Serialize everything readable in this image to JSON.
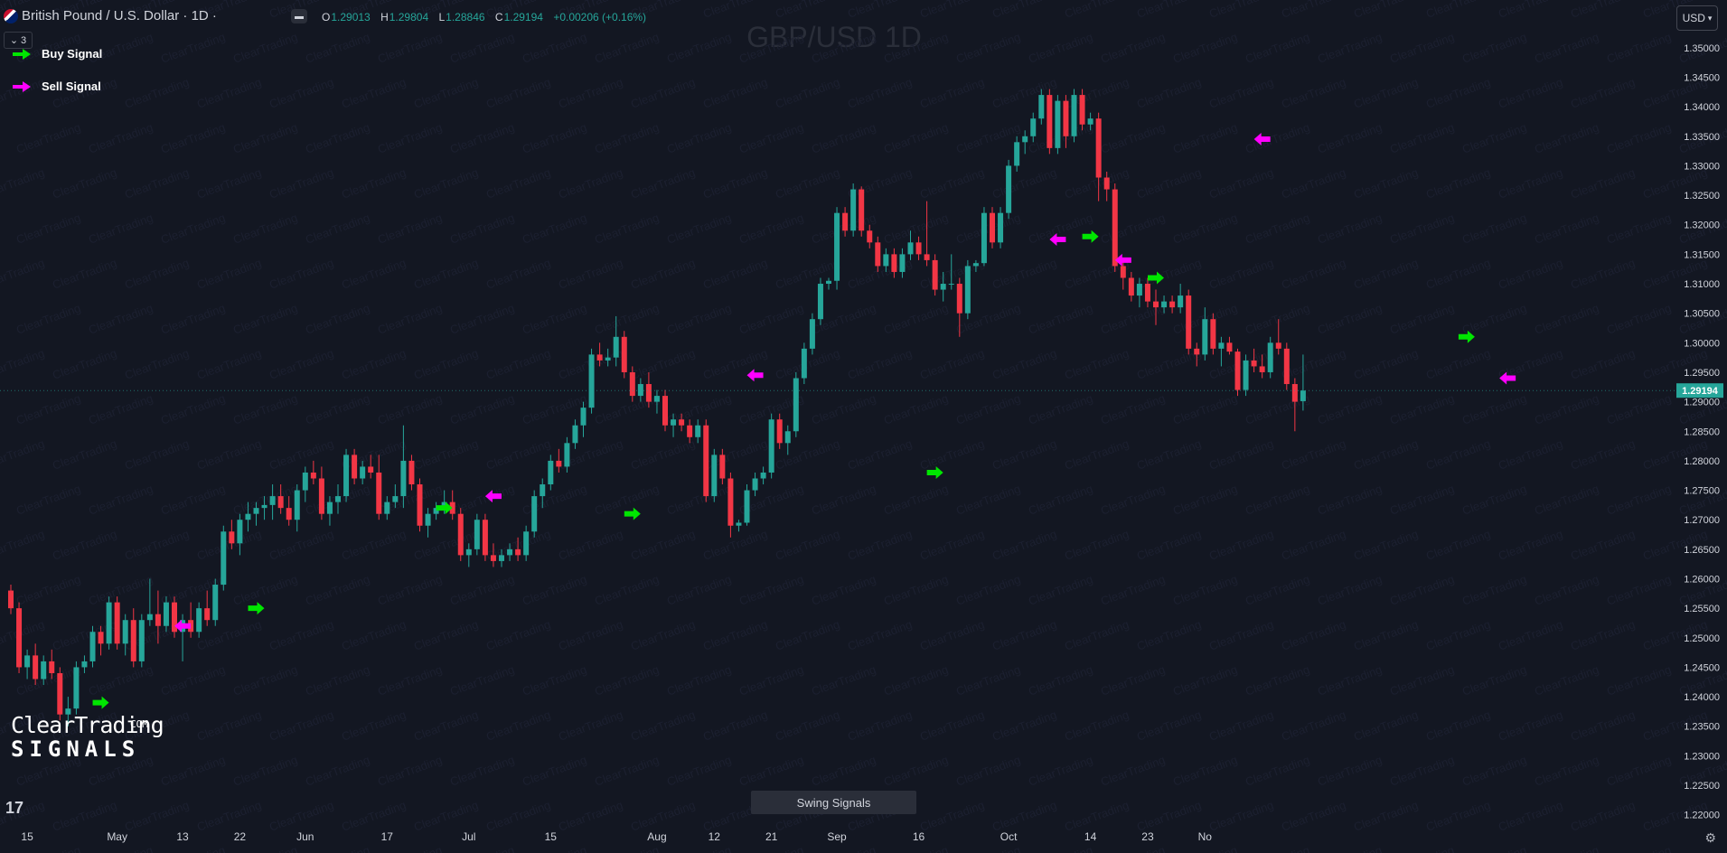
{
  "header": {
    "symbol": "British Pound / U.S. Dollar · 1D ·",
    "ohlc": [
      {
        "k": "O",
        "v": "1.29013"
      },
      {
        "k": "H",
        "v": "1.29804"
      },
      {
        "k": "L",
        "v": "1.28846"
      },
      {
        "k": "C",
        "v": "1.29194"
      }
    ],
    "change": "+0.00206 (+0.16%)",
    "indicator_count": "3",
    "currency": "USD"
  },
  "chart_data": {
    "type": "candlestick",
    "title": "GBP/USD 1D",
    "ylim": [
      1.2175,
      1.3535
    ],
    "yticks": [
      1.22,
      1.225,
      1.23,
      1.235,
      1.24,
      1.245,
      1.25,
      1.255,
      1.26,
      1.265,
      1.27,
      1.275,
      1.28,
      1.285,
      1.29,
      1.295,
      1.3,
      1.305,
      1.31,
      1.315,
      1.32,
      1.325,
      1.33,
      1.335,
      1.34,
      1.345,
      1.35
    ],
    "xticks": [
      {
        "label": "15",
        "i": 2
      },
      {
        "label": "May",
        "i": 13
      },
      {
        "label": "13",
        "i": 21
      },
      {
        "label": "22",
        "i": 28
      },
      {
        "label": "Jun",
        "i": 36
      },
      {
        "label": "17",
        "i": 46
      },
      {
        "label": "Jul",
        "i": 56
      },
      {
        "label": "15",
        "i": 66
      },
      {
        "label": "Aug",
        "i": 79
      },
      {
        "label": "12",
        "i": 86
      },
      {
        "label": "21",
        "i": 93
      },
      {
        "label": "Sep",
        "i": 101
      },
      {
        "label": "16",
        "i": 111
      },
      {
        "label": "Oct",
        "i": 122
      },
      {
        "label": "14",
        "i": 132
      },
      {
        "label": "23",
        "i": 139
      },
      {
        "label": "No",
        "i": 146
      }
    ],
    "last_price": "1.29194",
    "ohlc": [
      [
        1.258,
        1.259,
        1.254,
        1.255
      ],
      [
        1.255,
        1.256,
        1.244,
        1.245
      ],
      [
        1.245,
        1.248,
        1.243,
        1.247
      ],
      [
        1.247,
        1.249,
        1.242,
        1.243
      ],
      [
        1.243,
        1.247,
        1.242,
        1.246
      ],
      [
        1.246,
        1.248,
        1.243,
        1.244
      ],
      [
        1.244,
        1.245,
        1.236,
        1.237
      ],
      [
        1.237,
        1.24,
        1.235,
        1.238
      ],
      [
        1.238,
        1.246,
        1.237,
        1.245
      ],
      [
        1.245,
        1.247,
        1.244,
        1.246
      ],
      [
        1.246,
        1.252,
        1.245,
        1.251
      ],
      [
        1.251,
        1.252,
        1.247,
        1.249
      ],
      [
        1.249,
        1.257,
        1.248,
        1.256
      ],
      [
        1.256,
        1.257,
        1.248,
        1.249
      ],
      [
        1.249,
        1.254,
        1.247,
        1.253
      ],
      [
        1.253,
        1.255,
        1.245,
        1.246
      ],
      [
        1.246,
        1.254,
        1.245,
        1.253
      ],
      [
        1.253,
        1.26,
        1.252,
        1.254
      ],
      [
        1.254,
        1.258,
        1.249,
        1.252
      ],
      [
        1.252,
        1.257,
        1.251,
        1.256
      ],
      [
        1.256,
        1.257,
        1.25,
        1.251
      ],
      [
        1.251,
        1.254,
        1.246,
        1.253
      ],
      [
        1.253,
        1.256,
        1.25,
        1.251
      ],
      [
        1.251,
        1.256,
        1.25,
        1.255
      ],
      [
        1.255,
        1.258,
        1.252,
        1.253
      ],
      [
        1.253,
        1.26,
        1.252,
        1.259
      ],
      [
        1.259,
        1.269,
        1.258,
        1.268
      ],
      [
        1.268,
        1.27,
        1.265,
        1.266
      ],
      [
        1.266,
        1.271,
        1.264,
        1.27
      ],
      [
        1.27,
        1.273,
        1.268,
        1.271
      ],
      [
        1.271,
        1.273,
        1.269,
        1.272
      ],
      [
        1.272,
        1.274,
        1.27,
        1.2725
      ],
      [
        1.2725,
        1.276,
        1.27,
        1.274
      ],
      [
        1.274,
        1.276,
        1.271,
        1.272
      ],
      [
        1.272,
        1.274,
        1.269,
        1.27
      ],
      [
        1.27,
        1.276,
        1.268,
        1.275
      ],
      [
        1.275,
        1.279,
        1.273,
        1.278
      ],
      [
        1.278,
        1.28,
        1.276,
        1.277
      ],
      [
        1.277,
        1.279,
        1.27,
        1.271
      ],
      [
        1.271,
        1.274,
        1.269,
        1.273
      ],
      [
        1.273,
        1.276,
        1.271,
        1.274
      ],
      [
        1.274,
        1.282,
        1.273,
        1.281
      ],
      [
        1.281,
        1.282,
        1.276,
        1.277
      ],
      [
        1.277,
        1.28,
        1.276,
        1.279
      ],
      [
        1.279,
        1.281,
        1.277,
        1.278
      ],
      [
        1.278,
        1.281,
        1.27,
        1.271
      ],
      [
        1.271,
        1.274,
        1.27,
        1.273
      ],
      [
        1.273,
        1.276,
        1.272,
        1.274
      ],
      [
        1.274,
        1.286,
        1.272,
        1.28
      ],
      [
        1.28,
        1.281,
        1.275,
        1.276
      ],
      [
        1.276,
        1.277,
        1.268,
        1.269
      ],
      [
        1.269,
        1.272,
        1.267,
        1.271
      ],
      [
        1.271,
        1.273,
        1.27,
        1.272
      ],
      [
        1.272,
        1.275,
        1.271,
        1.273
      ],
      [
        1.273,
        1.275,
        1.27,
        1.271
      ],
      [
        1.271,
        1.272,
        1.263,
        1.264
      ],
      [
        1.264,
        1.266,
        1.262,
        1.265
      ],
      [
        1.265,
        1.271,
        1.264,
        1.27
      ],
      [
        1.27,
        1.271,
        1.263,
        1.264
      ],
      [
        1.264,
        1.266,
        1.262,
        1.263
      ],
      [
        1.263,
        1.265,
        1.262,
        1.264
      ],
      [
        1.264,
        1.266,
        1.263,
        1.265
      ],
      [
        1.265,
        1.267,
        1.263,
        1.264
      ],
      [
        1.264,
        1.269,
        1.263,
        1.268
      ],
      [
        1.268,
        1.275,
        1.267,
        1.274
      ],
      [
        1.274,
        1.277,
        1.272,
        1.276
      ],
      [
        1.276,
        1.281,
        1.275,
        1.28
      ],
      [
        1.28,
        1.282,
        1.278,
        1.279
      ],
      [
        1.279,
        1.284,
        1.278,
        1.283
      ],
      [
        1.283,
        1.287,
        1.282,
        1.286
      ],
      [
        1.286,
        1.29,
        1.284,
        1.289
      ],
      [
        1.289,
        1.299,
        1.288,
        1.298
      ],
      [
        1.298,
        1.3,
        1.296,
        1.297
      ],
      [
        1.297,
        1.299,
        1.296,
        1.2975
      ],
      [
        1.2975,
        1.3045,
        1.296,
        1.301
      ],
      [
        1.301,
        1.302,
        1.294,
        1.295
      ],
      [
        1.295,
        1.296,
        1.29,
        1.291
      ],
      [
        1.291,
        1.294,
        1.29,
        1.293
      ],
      [
        1.293,
        1.295,
        1.289,
        1.29
      ],
      [
        1.29,
        1.292,
        1.288,
        1.291
      ],
      [
        1.291,
        1.292,
        1.285,
        1.286
      ],
      [
        1.286,
        1.288,
        1.284,
        1.287
      ],
      [
        1.287,
        1.288,
        1.285,
        1.286
      ],
      [
        1.286,
        1.287,
        1.283,
        1.284
      ],
      [
        1.284,
        1.287,
        1.283,
        1.286
      ],
      [
        1.286,
        1.287,
        1.273,
        1.274
      ],
      [
        1.274,
        1.282,
        1.273,
        1.281
      ],
      [
        1.281,
        1.282,
        1.276,
        1.277
      ],
      [
        1.277,
        1.278,
        1.267,
        1.269
      ],
      [
        1.269,
        1.27,
        1.268,
        1.2695
      ],
      [
        1.2695,
        1.276,
        1.269,
        1.275
      ],
      [
        1.275,
        1.278,
        1.274,
        1.277
      ],
      [
        1.277,
        1.279,
        1.276,
        1.278
      ],
      [
        1.278,
        1.288,
        1.277,
        1.287
      ],
      [
        1.287,
        1.288,
        1.282,
        1.283
      ],
      [
        1.283,
        1.286,
        1.281,
        1.285
      ],
      [
        1.285,
        1.295,
        1.284,
        1.294
      ],
      [
        1.294,
        1.3,
        1.293,
        1.299
      ],
      [
        1.299,
        1.305,
        1.298,
        1.304
      ],
      [
        1.304,
        1.311,
        1.303,
        1.31
      ],
      [
        1.31,
        1.311,
        1.309,
        1.3105
      ],
      [
        1.3105,
        1.323,
        1.309,
        1.322
      ],
      [
        1.322,
        1.323,
        1.318,
        1.319
      ],
      [
        1.319,
        1.327,
        1.318,
        1.326
      ],
      [
        1.326,
        1.3265,
        1.318,
        1.319
      ],
      [
        1.319,
        1.32,
        1.316,
        1.317
      ],
      [
        1.317,
        1.318,
        1.312,
        1.313
      ],
      [
        1.313,
        1.316,
        1.312,
        1.315
      ],
      [
        1.315,
        1.316,
        1.311,
        1.312
      ],
      [
        1.312,
        1.316,
        1.311,
        1.315
      ],
      [
        1.315,
        1.319,
        1.314,
        1.317
      ],
      [
        1.317,
        1.318,
        1.314,
        1.315
      ],
      [
        1.315,
        1.324,
        1.313,
        1.314
      ],
      [
        1.314,
        1.315,
        1.308,
        1.309
      ],
      [
        1.309,
        1.312,
        1.307,
        1.31
      ],
      [
        1.31,
        1.315,
        1.309,
        1.31
      ],
      [
        1.31,
        1.311,
        1.301,
        1.305
      ],
      [
        1.305,
        1.314,
        1.304,
        1.313
      ],
      [
        1.313,
        1.314,
        1.312,
        1.3135
      ],
      [
        1.3135,
        1.323,
        1.313,
        1.322
      ],
      [
        1.322,
        1.323,
        1.316,
        1.317
      ],
      [
        1.317,
        1.323,
        1.316,
        1.322
      ],
      [
        1.322,
        1.331,
        1.321,
        1.33
      ],
      [
        1.33,
        1.335,
        1.329,
        1.334
      ],
      [
        1.334,
        1.336,
        1.332,
        1.335
      ],
      [
        1.335,
        1.339,
        1.334,
        1.338
      ],
      [
        1.338,
        1.343,
        1.337,
        1.342
      ],
      [
        1.342,
        1.343,
        1.332,
        1.333
      ],
      [
        1.333,
        1.342,
        1.332,
        1.341
      ],
      [
        1.341,
        1.342,
        1.333,
        1.335
      ],
      [
        1.335,
        1.343,
        1.334,
        1.342
      ],
      [
        1.342,
        1.343,
        1.336,
        1.337
      ],
      [
        1.337,
        1.339,
        1.336,
        1.338
      ],
      [
        1.338,
        1.339,
        1.324,
        1.328
      ],
      [
        1.328,
        1.329,
        1.324,
        1.326
      ],
      [
        1.326,
        1.327,
        1.312,
        1.313
      ],
      [
        1.313,
        1.314,
        1.309,
        1.311
      ],
      [
        1.311,
        1.312,
        1.307,
        1.308
      ],
      [
        1.308,
        1.311,
        1.306,
        1.31
      ],
      [
        1.31,
        1.311,
        1.306,
        1.307
      ],
      [
        1.307,
        1.309,
        1.303,
        1.306
      ],
      [
        1.306,
        1.308,
        1.305,
        1.307
      ],
      [
        1.307,
        1.308,
        1.305,
        1.306
      ],
      [
        1.306,
        1.31,
        1.305,
        1.308
      ],
      [
        1.308,
        1.309,
        1.298,
        1.299
      ],
      [
        1.299,
        1.3,
        1.296,
        1.298
      ],
      [
        1.298,
        1.306,
        1.297,
        1.304
      ],
      [
        1.304,
        1.305,
        1.298,
        1.299
      ],
      [
        1.299,
        1.301,
        1.296,
        1.3
      ],
      [
        1.3,
        1.301,
        1.298,
        1.2985
      ],
      [
        1.2985,
        1.299,
        1.291,
        1.292
      ],
      [
        1.292,
        1.298,
        1.291,
        1.297
      ],
      [
        1.297,
        1.299,
        1.295,
        1.296
      ],
      [
        1.296,
        1.298,
        1.294,
        1.295
      ],
      [
        1.295,
        1.301,
        1.294,
        1.3
      ],
      [
        1.3,
        1.304,
        1.298,
        1.299
      ],
      [
        1.299,
        1.3,
        1.292,
        1.293
      ],
      [
        1.293,
        1.294,
        1.285,
        1.29
      ],
      [
        1.2901,
        1.298,
        1.2885,
        1.2919
      ]
    ],
    "signals": [
      {
        "type": "buy",
        "i": 11,
        "y": 1.239
      },
      {
        "type": "sell",
        "i": 21,
        "y": 1.252
      },
      {
        "type": "buy",
        "i": 30,
        "y": 1.255
      },
      {
        "type": "buy",
        "i": 53,
        "y": 1.272
      },
      {
        "type": "sell",
        "i": 59,
        "y": 1.274
      },
      {
        "type": "buy",
        "i": 76,
        "y": 1.271
      },
      {
        "type": "sell",
        "i": 91,
        "y": 1.2945
      },
      {
        "type": "buy",
        "i": 113,
        "y": 1.278
      },
      {
        "type": "sell",
        "i": 128,
        "y": 1.3175
      },
      {
        "type": "buy",
        "i": 132,
        "y": 1.318
      },
      {
        "type": "sell",
        "i": 136,
        "y": 1.314
      },
      {
        "type": "buy",
        "i": 140,
        "y": 1.311
      },
      {
        "type": "sell",
        "i": 153,
        "y": 1.3345
      },
      {
        "type": "buy",
        "i": 178,
        "y": 1.301
      },
      {
        "type": "sell",
        "i": 183,
        "y": 1.294
      }
    ]
  },
  "legend": {
    "buy_label": "Buy Signal",
    "sell_label": "Sell Signal"
  },
  "watermark": {
    "brand_line1": "ClearTrading",
    "brand_line2": "SIGNALS",
    "brand_dotcom": "COM"
  },
  "indicator_label": "Swing Signals",
  "logo_text": "17",
  "colors": {
    "bg": "#131722",
    "up": "#26a69a",
    "down": "#f23645",
    "buy": "#00e600",
    "sell": "#ff00ff",
    "axis_text": "#d1d4dc"
  }
}
